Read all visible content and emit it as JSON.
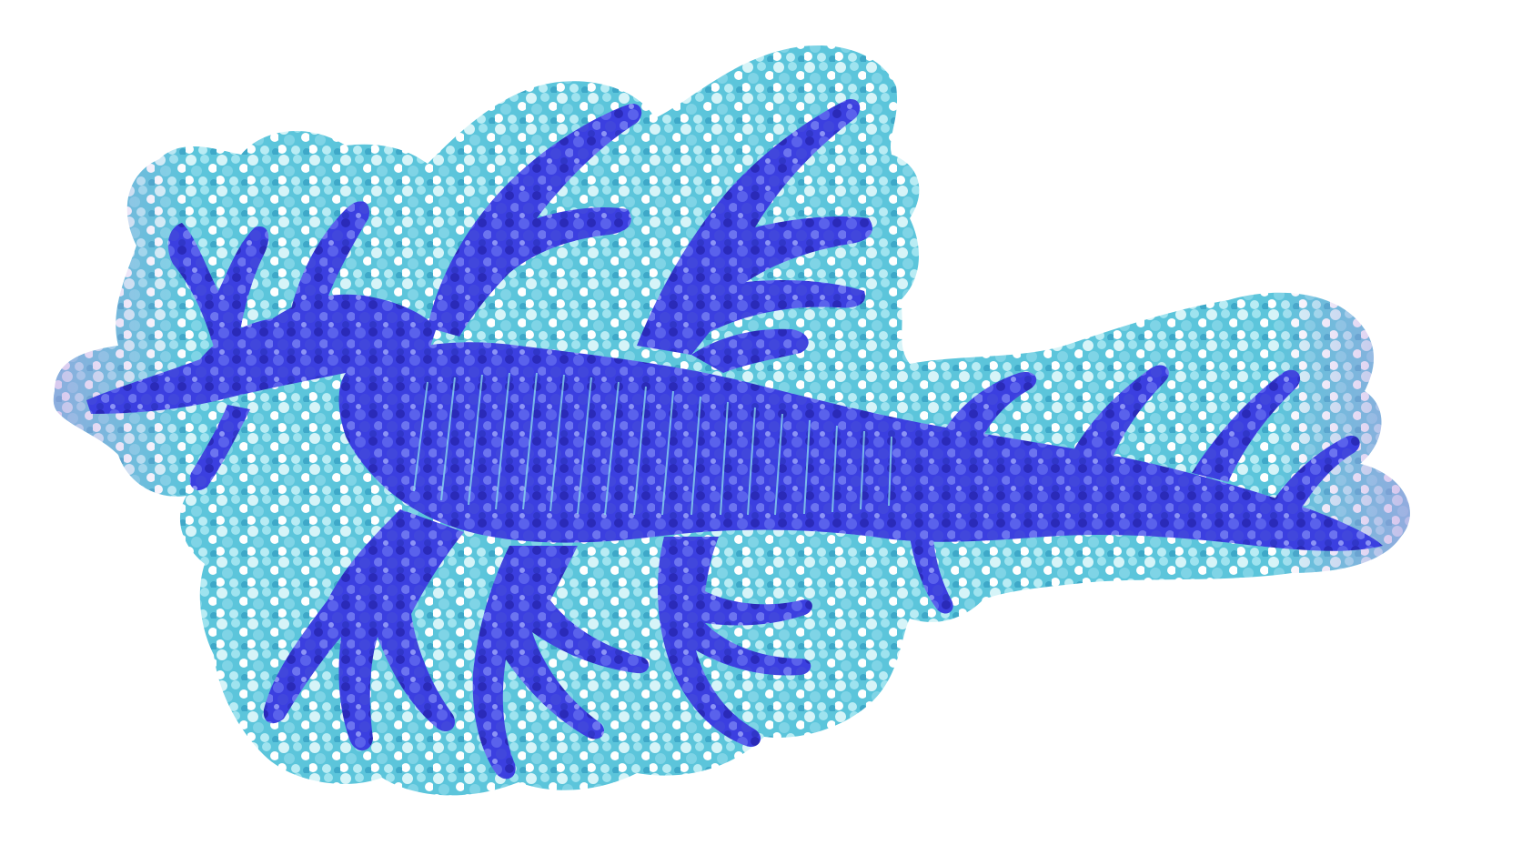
{
  "image": {
    "subject": "leafy-seadragon-sticker",
    "background_color": "#ffffff",
    "palette": {
      "border_light": "#9ee3ef",
      "border_mid": "#52bfd6",
      "border_pale": "#d6f4f8",
      "border_violet": "#b69be0",
      "body_blue": "#3b3fe0",
      "body_deep": "#2a2ab8",
      "body_light": "#6c74f0",
      "sparkle": "#ffffff"
    }
  }
}
